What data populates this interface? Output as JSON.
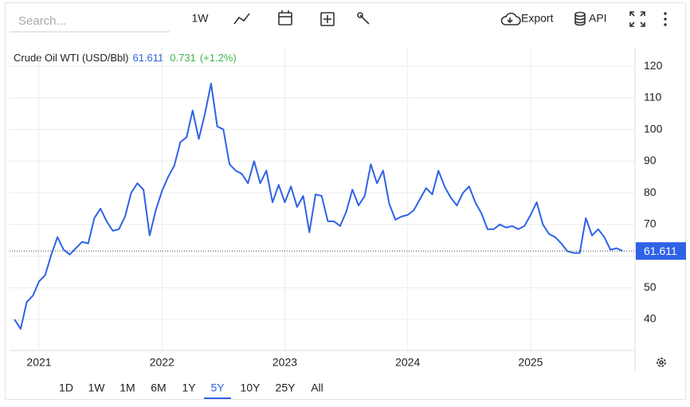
{
  "ui": {
    "search_placeholder": "Search...",
    "toolbar_range": "1W",
    "export": "Export",
    "api": "API",
    "ranges": [
      "1D",
      "1W",
      "1M",
      "6M",
      "1Y",
      "5Y",
      "10Y",
      "25Y",
      "All"
    ],
    "active_range": "5Y"
  },
  "chart_data": {
    "type": "line",
    "title": "Crude Oil WTI (USD/Bbl)",
    "change": 0.731,
    "change_label": "(+1.2%)",
    "x": [
      2020.8,
      2020.85,
      2020.9,
      2020.95,
      2021,
      2021.05,
      2021.1,
      2021.15,
      2021.2,
      2021.25,
      2021.3,
      2021.35,
      2021.4,
      2021.45,
      2021.5,
      2021.55,
      2021.6,
      2021.65,
      2021.7,
      2021.75,
      2021.8,
      2021.85,
      2021.9,
      2021.95,
      2022,
      2022.05,
      2022.1,
      2022.15,
      2022.2,
      2022.25,
      2022.3,
      2022.35,
      2022.4,
      2022.45,
      2022.5,
      2022.55,
      2022.6,
      2022.65,
      2022.7,
      2022.75,
      2022.8,
      2022.85,
      2022.9,
      2022.95,
      2023,
      2023.05,
      2023.1,
      2023.15,
      2023.2,
      2023.25,
      2023.3,
      2023.35,
      2023.4,
      2023.45,
      2023.5,
      2023.55,
      2023.6,
      2023.65,
      2023.7,
      2023.75,
      2023.8,
      2023.85,
      2023.9,
      2023.95,
      2024,
      2024.05,
      2024.1,
      2024.15,
      2024.2,
      2024.25,
      2024.3,
      2024.35,
      2024.4,
      2024.45,
      2024.5,
      2024.55,
      2024.6,
      2024.65,
      2024.7,
      2024.75,
      2024.8,
      2024.85,
      2024.9,
      2024.95,
      2025,
      2025.05,
      2025.1,
      2025.15,
      2025.2,
      2025.25,
      2025.3,
      2025.35,
      2025.4,
      2025.45,
      2025.5,
      2025.55,
      2025.6,
      2025.65,
      2025.7,
      2025.75
    ],
    "series": [
      {
        "name": "Crude Oil WTI",
        "color": "#2f62e6",
        "values": [
          40,
          37,
          45.5,
          47.5,
          52,
          54,
          60.5,
          66,
          62,
          60.5,
          62.5,
          64.5,
          64,
          72,
          75,
          71,
          68,
          68.5,
          72.5,
          80,
          83,
          81,
          66.5,
          74.5,
          80.5,
          85,
          88.5,
          96,
          97.5,
          106,
          97,
          105,
          114.5,
          101,
          100,
          89,
          87,
          86,
          83,
          90,
          83,
          87,
          77,
          82.5,
          77,
          82,
          75.5,
          79,
          67.5,
          79.5,
          79,
          71,
          71,
          69.5,
          74,
          81,
          76,
          79,
          89,
          83,
          87,
          76.5,
          71.5,
          72.5,
          73,
          74.5,
          78,
          81.5,
          79.5,
          87,
          82,
          78.5,
          76,
          80,
          82,
          77,
          73.5,
          68.5,
          68.5,
          70,
          69,
          69.5,
          68.5,
          69.5,
          73,
          77,
          70,
          67,
          66,
          64,
          61.5,
          61,
          61,
          72,
          66.5,
          68.5,
          66,
          62,
          62.5,
          61.611
        ]
      }
    ],
    "xlim": [
      2020.76,
      2025.85
    ],
    "xticks": [
      2021,
      2022,
      2023,
      2024,
      2025
    ],
    "ylim": [
      30.2,
      125.8
    ],
    "yticks": [
      40,
      50,
      60,
      70,
      80,
      90,
      100,
      110,
      120
    ],
    "grid": true,
    "change_color": "#3bb54a"
  }
}
